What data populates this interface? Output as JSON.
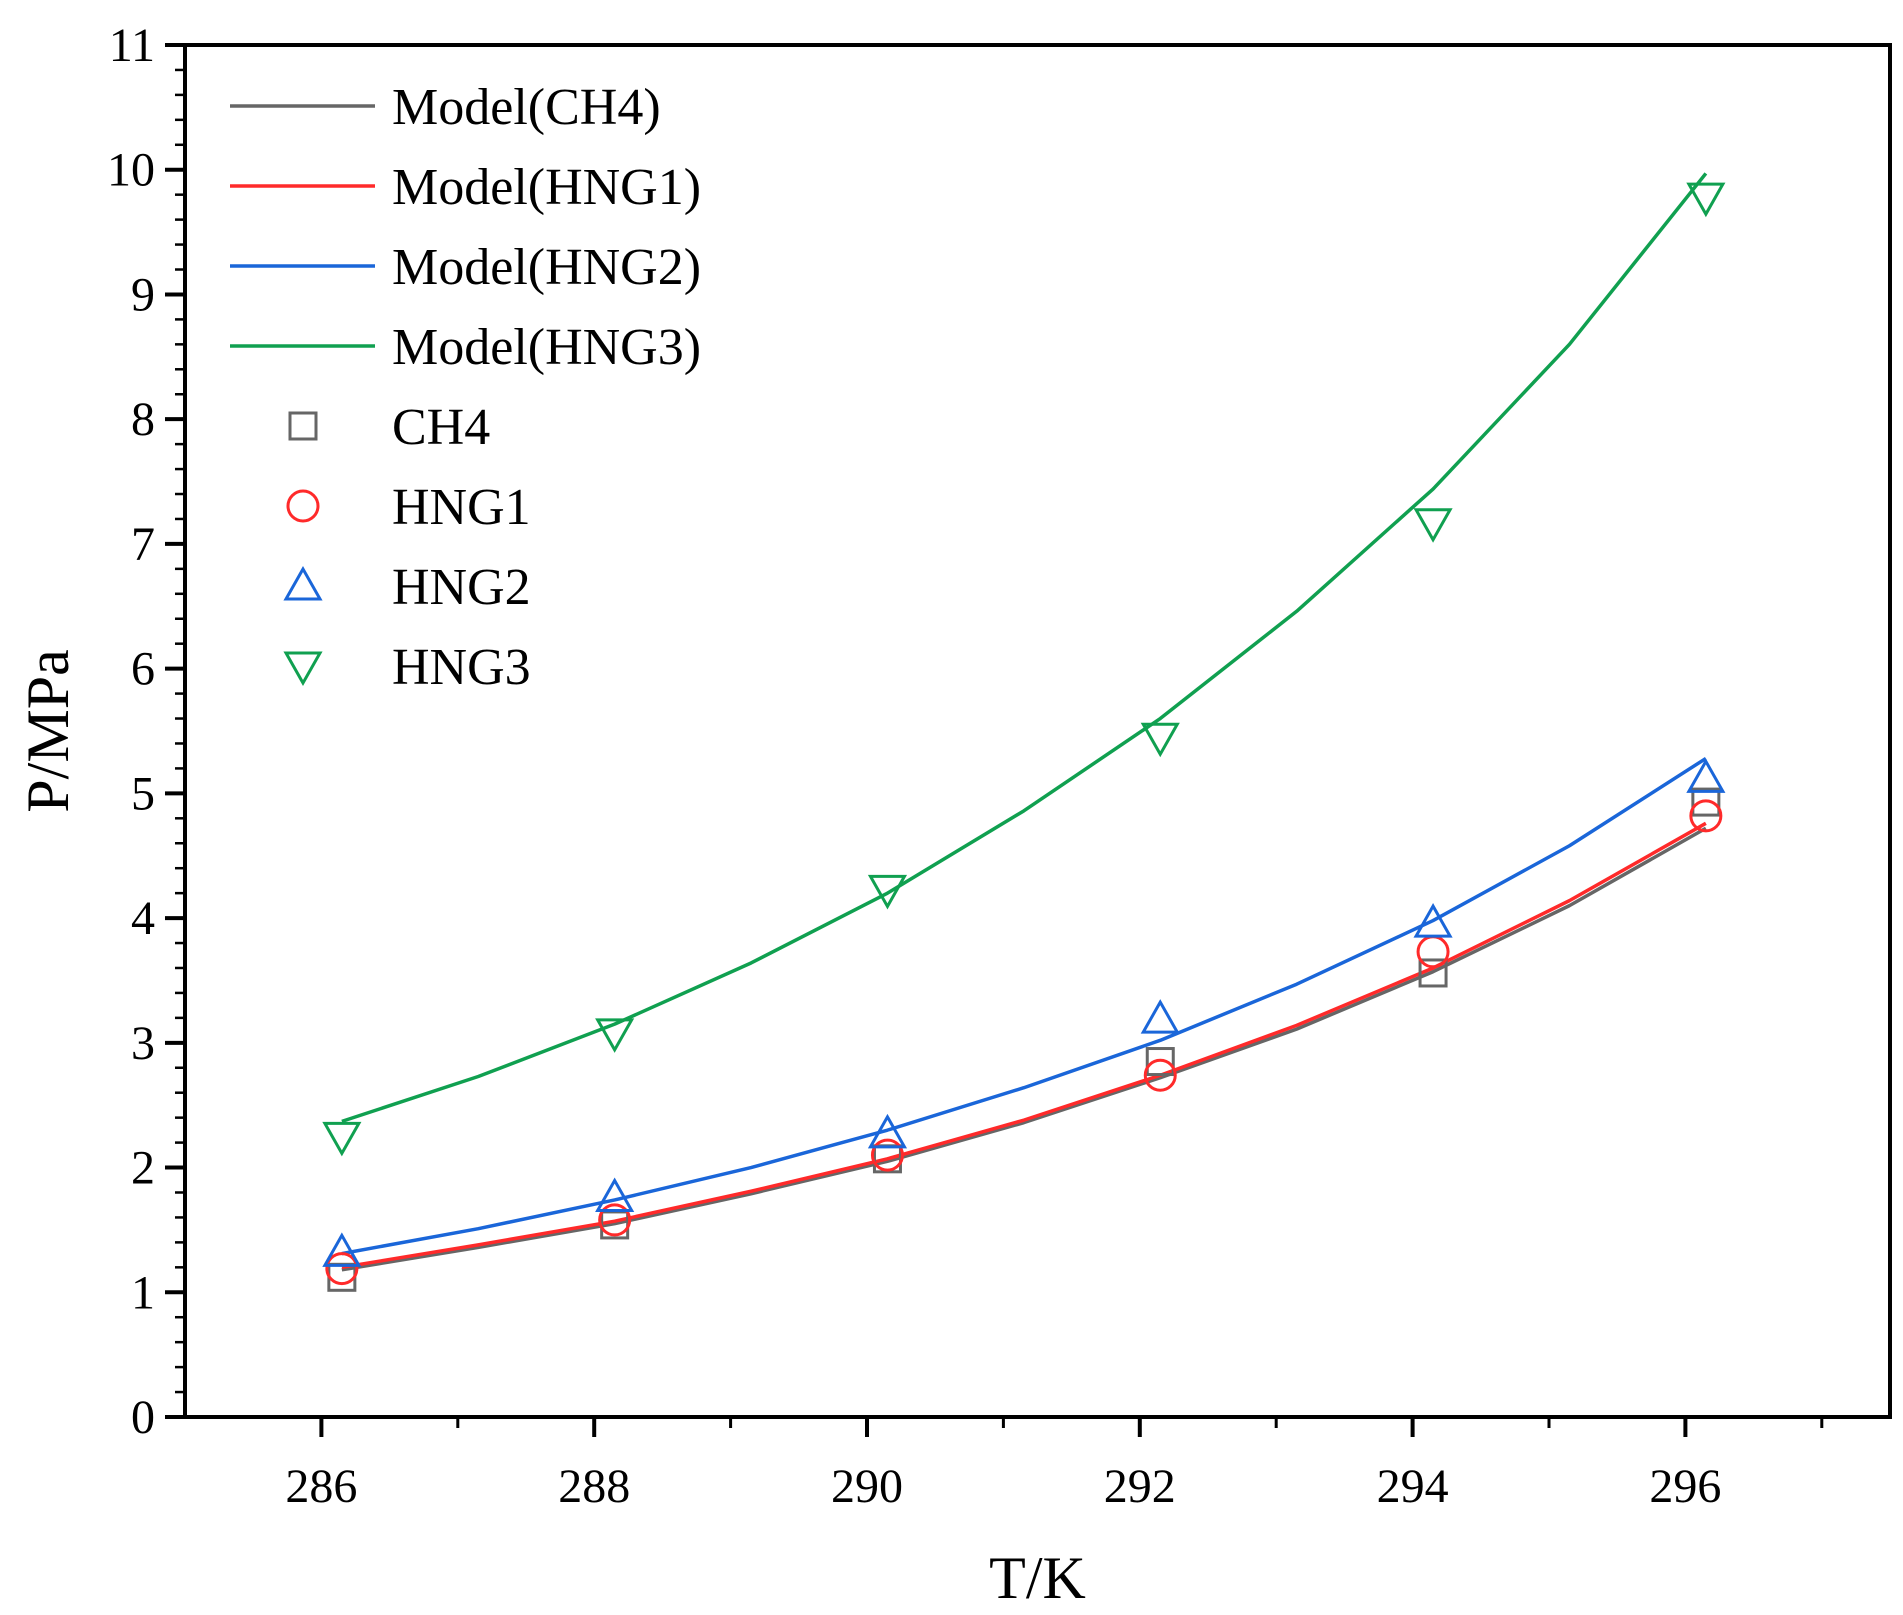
{
  "chart_data": {
    "type": "line",
    "xlabel": "T/K",
    "ylabel": "P/MPa",
    "xlim": [
      285,
      297.5
    ],
    "ylim": [
      0,
      11
    ],
    "xticks": [
      286,
      288,
      290,
      292,
      294,
      296
    ],
    "yticks": [
      0,
      1,
      2,
      3,
      4,
      5,
      6,
      7,
      8,
      9,
      10,
      11
    ],
    "grid": false,
    "legend_position": "top-left",
    "model_series": [
      {
        "name": "Model(CH4)",
        "color": "#666666",
        "x": [
          286.15,
          287.15,
          288.15,
          289.15,
          290.15,
          291.15,
          292.15,
          293.15,
          294.15,
          295.15,
          296.15
        ],
        "y": [
          1.18,
          1.36,
          1.55,
          1.79,
          2.05,
          2.36,
          2.72,
          3.11,
          3.57,
          4.1,
          4.72
        ]
      },
      {
        "name": "Model(HNG1)",
        "color": "#ff2a2a",
        "x": [
          286.15,
          287.15,
          288.15,
          289.15,
          290.15,
          291.15,
          292.15,
          293.15,
          294.15,
          295.15,
          296.15
        ],
        "y": [
          1.2,
          1.38,
          1.57,
          1.81,
          2.07,
          2.38,
          2.74,
          3.14,
          3.6,
          4.14,
          4.76
        ]
      },
      {
        "name": "Model(HNG2)",
        "color": "#1a66d9",
        "x": [
          286.15,
          287.15,
          288.15,
          289.15,
          290.15,
          291.15,
          292.15,
          293.15,
          294.15,
          295.15,
          296.15
        ],
        "y": [
          1.31,
          1.51,
          1.74,
          2.0,
          2.3,
          2.64,
          3.02,
          3.47,
          3.98,
          4.58,
          5.28
        ]
      },
      {
        "name": "Model(HNG3)",
        "color": "#10a050",
        "x": [
          286.15,
          287.15,
          288.15,
          289.15,
          290.15,
          291.15,
          292.15,
          293.15,
          294.15,
          295.15,
          296.15
        ],
        "y": [
          2.37,
          2.73,
          3.15,
          3.64,
          4.2,
          4.86,
          5.6,
          6.46,
          7.44,
          8.6,
          9.97
        ]
      }
    ],
    "marker_series": [
      {
        "name": "CH4",
        "marker": "square",
        "color": "#666666",
        "x": [
          286.15,
          288.15,
          290.15,
          292.15,
          294.15,
          296.15
        ],
        "y": [
          1.12,
          1.54,
          2.07,
          2.85,
          3.56,
          4.93
        ]
      },
      {
        "name": "HNG1",
        "marker": "circle",
        "color": "#ff2a2a",
        "x": [
          286.15,
          288.15,
          290.15,
          292.15,
          294.15,
          296.15
        ],
        "y": [
          1.19,
          1.58,
          2.1,
          2.74,
          3.73,
          4.82
        ]
      },
      {
        "name": "HNG2",
        "marker": "triangle-up",
        "color": "#1a66d9",
        "x": [
          286.15,
          288.15,
          290.15,
          292.15,
          294.15,
          296.15
        ],
        "y": [
          1.32,
          1.76,
          2.27,
          3.19,
          3.96,
          5.12
        ]
      },
      {
        "name": "HNG3",
        "marker": "triangle-down",
        "color": "#10a050",
        "x": [
          286.15,
          288.15,
          290.15,
          292.15,
          294.15,
          296.15
        ],
        "y": [
          2.25,
          3.08,
          4.23,
          5.45,
          7.17,
          9.78
        ]
      }
    ]
  }
}
